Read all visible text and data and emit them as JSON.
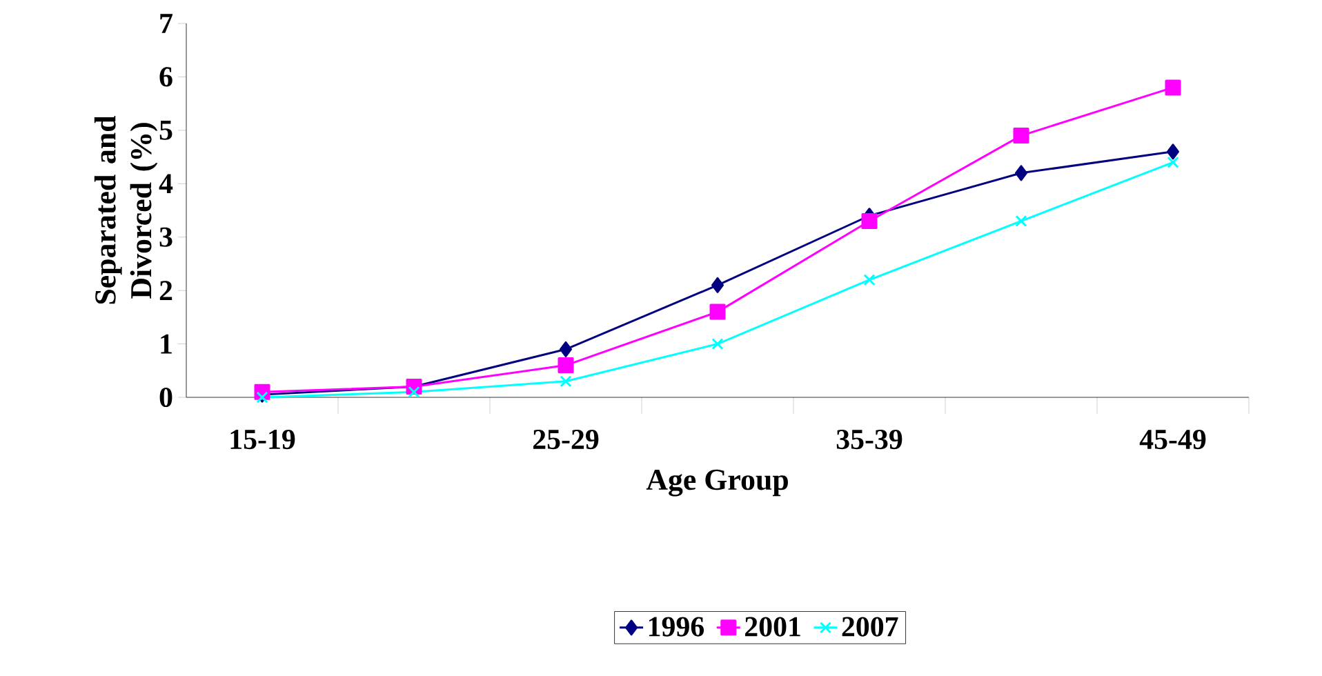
{
  "chart_data": {
    "type": "line",
    "xlabel": "Age Group",
    "ylabel": "Separated and Divorced (%)",
    "categories": [
      "15-19",
      null,
      "25-29",
      null,
      "35-39",
      null,
      "45-49"
    ],
    "series": [
      {
        "name": "1996",
        "color": "#000080",
        "marker": "diamond",
        "values": [
          0.05,
          0.2,
          0.9,
          2.1,
          3.4,
          4.2,
          4.6
        ]
      },
      {
        "name": "2001",
        "color": "#ff00ff",
        "marker": "square",
        "values": [
          0.1,
          0.2,
          0.6,
          1.6,
          3.3,
          4.9,
          5.8
        ]
      },
      {
        "name": "2007",
        "color": "#00ffff",
        "marker": "cross",
        "values": [
          0.0,
          0.1,
          0.3,
          1.0,
          2.2,
          3.3,
          4.4
        ]
      }
    ],
    "ylim": [
      0,
      7
    ],
    "yticks": [
      0,
      1,
      2,
      3,
      4,
      5,
      6,
      7
    ],
    "grid": false,
    "legend": "bottom",
    "line_style": "solid"
  }
}
